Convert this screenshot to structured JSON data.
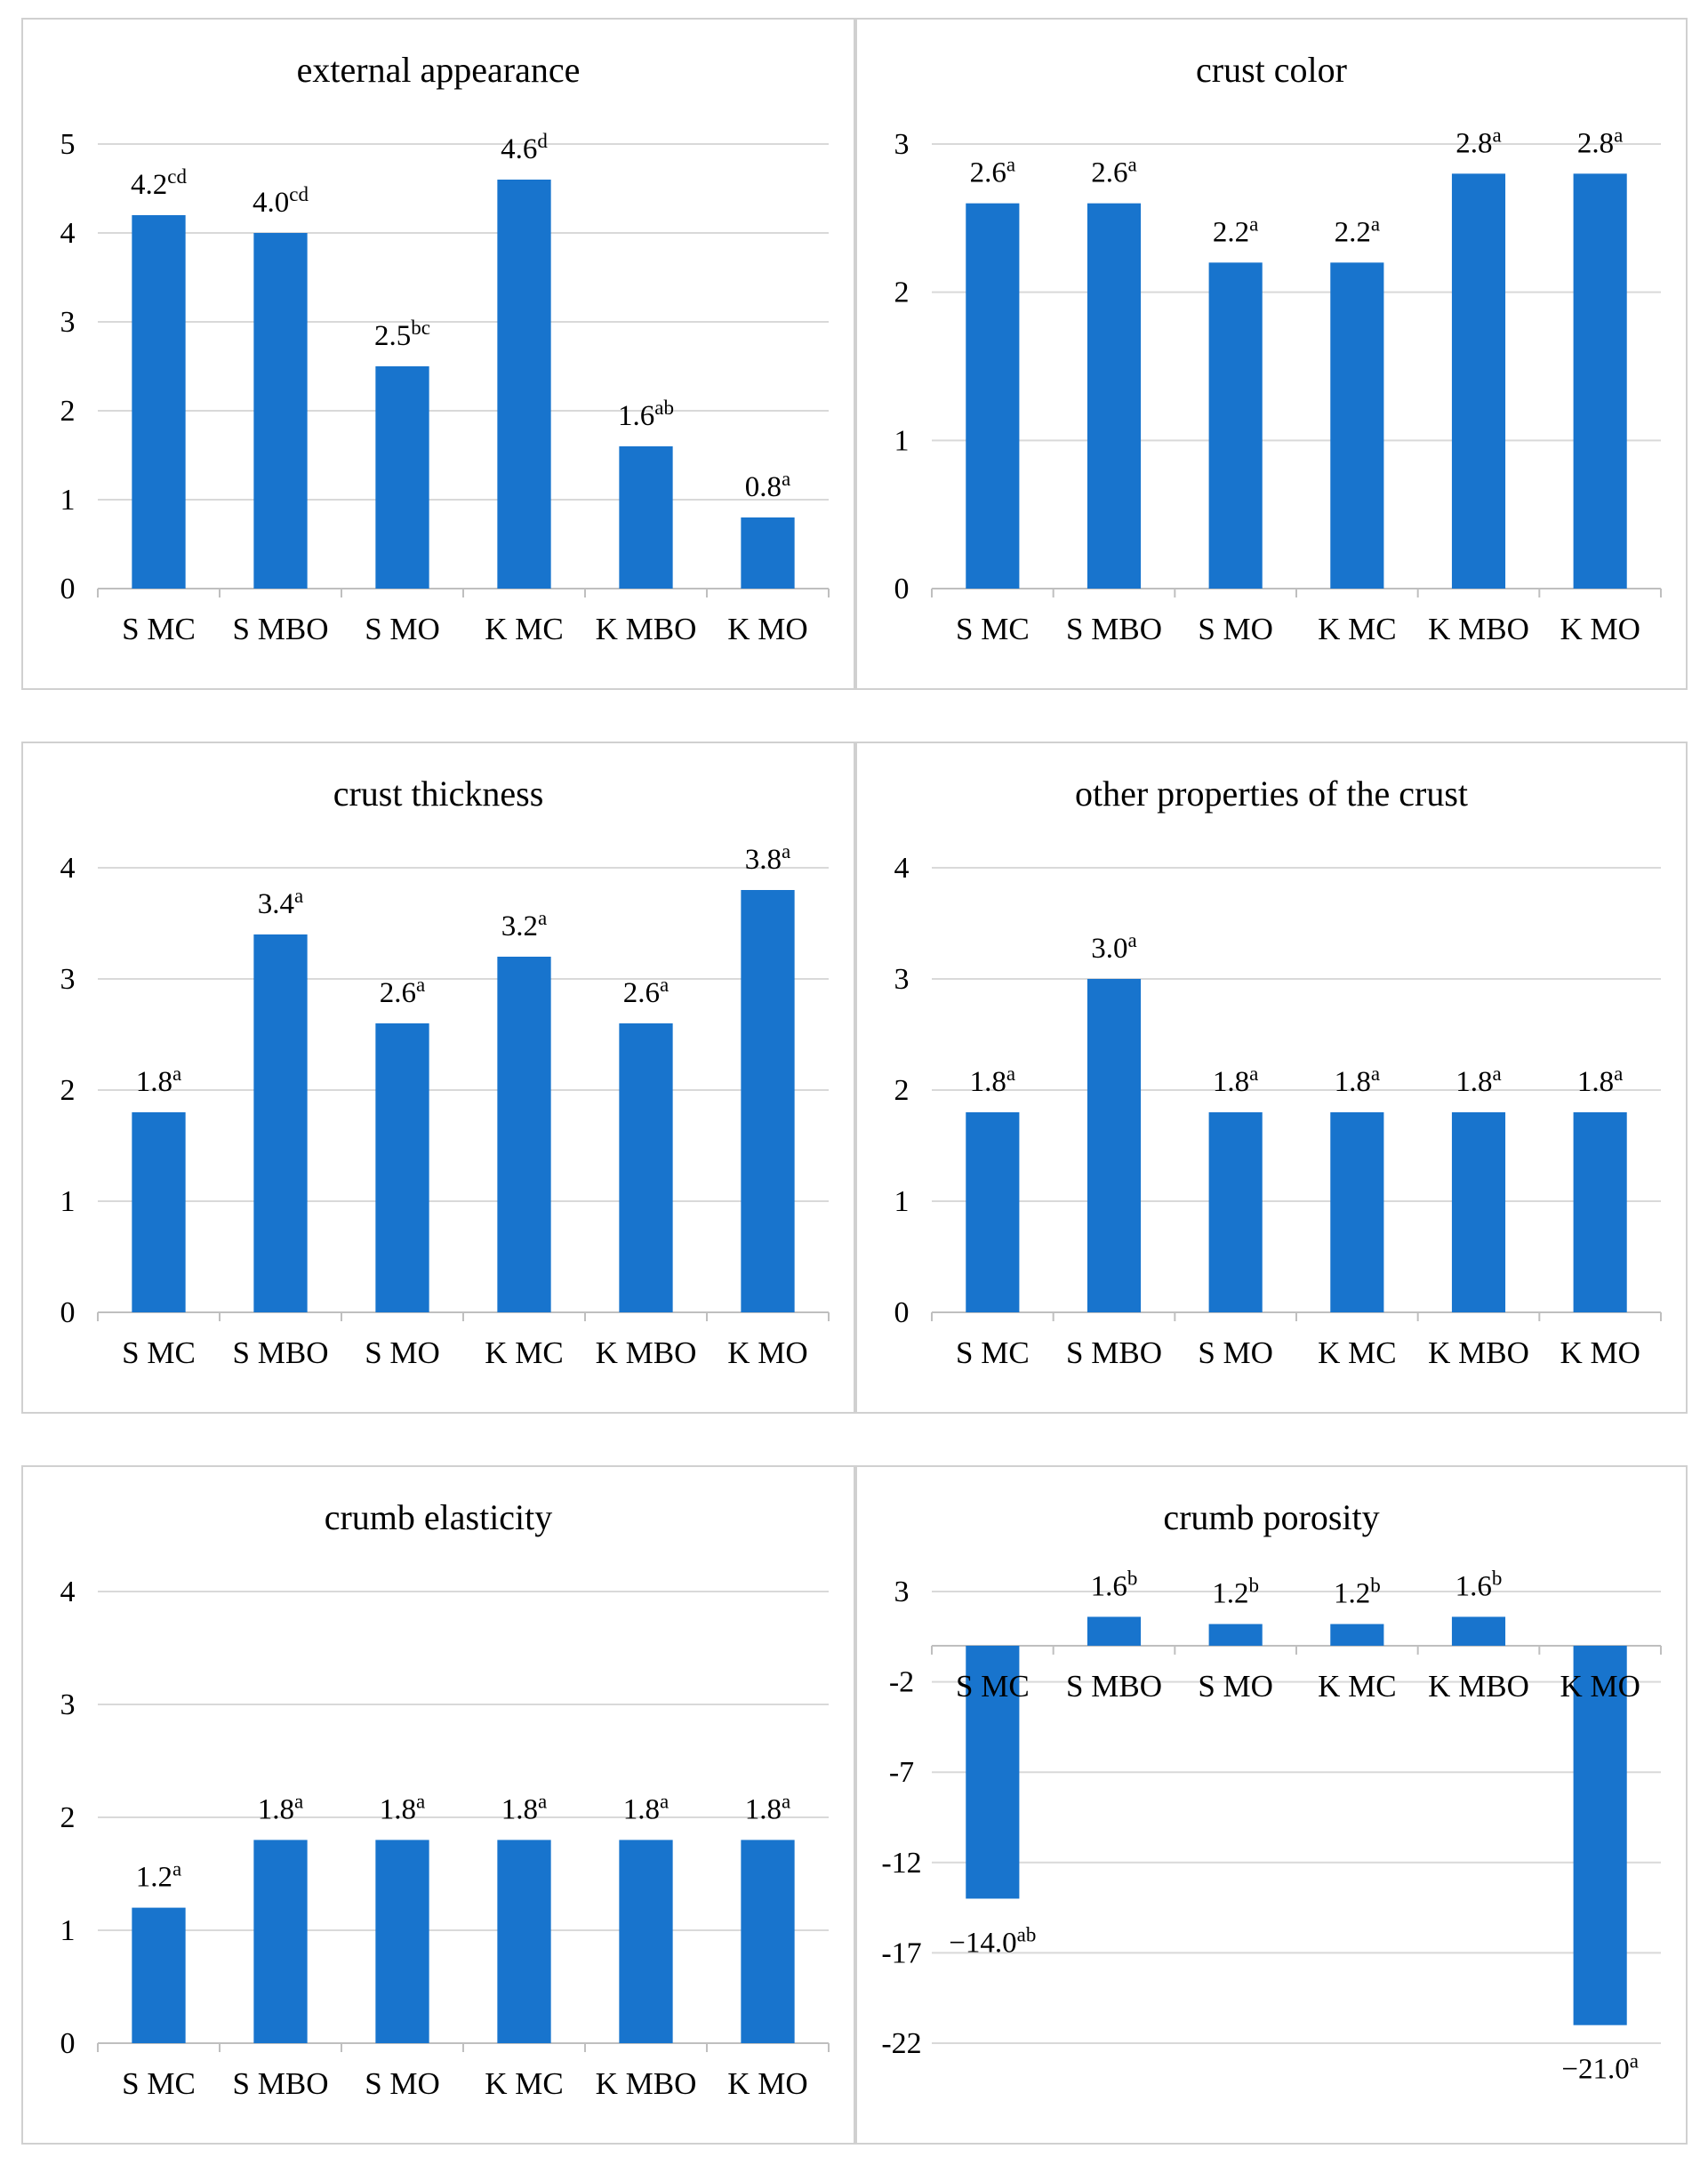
{
  "bar_color": "#1874cd",
  "chart_data": [
    {
      "type": "bar",
      "title": "external appearance",
      "categories": [
        "S MC",
        "S MBO",
        "S MO",
        "K MC",
        "K MBO",
        "K MO"
      ],
      "values": [
        4.2,
        4.0,
        2.5,
        4.6,
        1.6,
        0.8
      ],
      "value_labels": [
        "4.2",
        "4.0",
        "2.5",
        "4.6",
        "1.6",
        "0.8"
      ],
      "superscripts": [
        "cd",
        "cd",
        "bc",
        "d",
        "ab",
        "a"
      ],
      "ylim": [
        0,
        5
      ],
      "yticks": [
        0,
        1,
        2,
        3,
        4,
        5
      ],
      "ytick_labels": [
        "0",
        "1",
        "2",
        "3",
        "4",
        "5"
      ],
      "grid": true
    },
    {
      "type": "bar",
      "title": "crust color",
      "categories": [
        "S MC",
        "S MBO",
        "S MO",
        "K MC",
        "K MBO",
        "K MO"
      ],
      "values": [
        2.6,
        2.6,
        2.2,
        2.2,
        2.8,
        2.8
      ],
      "value_labels": [
        "2.6",
        "2.6",
        "2.2",
        "2.2",
        "2.8",
        "2.8"
      ],
      "superscripts": [
        "a",
        "a",
        "a",
        "a",
        "a",
        "a"
      ],
      "ylim": [
        0,
        3
      ],
      "yticks": [
        0,
        1,
        2,
        3
      ],
      "ytick_labels": [
        "0",
        "1",
        "2",
        "3"
      ],
      "grid": true
    },
    {
      "type": "bar",
      "title": "crust thickness",
      "categories": [
        "S MC",
        "S MBO",
        "S MO",
        "K MC",
        "K MBO",
        "K MO"
      ],
      "values": [
        1.8,
        3.4,
        2.6,
        3.2,
        2.6,
        3.8
      ],
      "value_labels": [
        "1.8",
        "3.4",
        "2.6",
        "3.2",
        "2.6",
        "3.8"
      ],
      "superscripts": [
        "a",
        "a",
        "a",
        "a",
        "a",
        "a"
      ],
      "ylim": [
        0,
        4
      ],
      "yticks": [
        0,
        1,
        2,
        3,
        4
      ],
      "ytick_labels": [
        "0",
        "1",
        "2",
        "3",
        "4"
      ],
      "grid": true
    },
    {
      "type": "bar",
      "title": "other properties of the crust",
      "categories": [
        "S MC",
        "S MBO",
        "S MO",
        "K MC",
        "K MBO",
        "K MO"
      ],
      "values": [
        1.8,
        3.0,
        1.8,
        1.8,
        1.8,
        1.8
      ],
      "value_labels": [
        "1.8",
        "3.0",
        "1.8",
        "1.8",
        "1.8",
        "1.8"
      ],
      "superscripts": [
        "a",
        "a",
        "a",
        "a",
        "a",
        "a"
      ],
      "ylim": [
        0,
        4
      ],
      "yticks": [
        0,
        1,
        2,
        3,
        4
      ],
      "ytick_labels": [
        "0",
        "1",
        "2",
        "3",
        "4"
      ],
      "grid": true
    },
    {
      "type": "bar",
      "title": "crumb elasticity",
      "categories": [
        "S MC",
        "S MBO",
        "S MO",
        "K MC",
        "K MBO",
        "K MO"
      ],
      "values": [
        1.2,
        1.8,
        1.8,
        1.8,
        1.8,
        1.8
      ],
      "value_labels": [
        "1.2",
        "1.8",
        "1.8",
        "1.8",
        "1.8",
        "1.8"
      ],
      "superscripts": [
        "a",
        "a",
        "a",
        "a",
        "a",
        "a"
      ],
      "ylim": [
        0,
        4
      ],
      "yticks": [
        0,
        1,
        2,
        3,
        4
      ],
      "ytick_labels": [
        "0",
        "1",
        "2",
        "3",
        "4"
      ],
      "grid": true
    },
    {
      "type": "bar",
      "title": "crumb porosity",
      "categories": [
        "S MC",
        "S MBO",
        "S MO",
        "K MC",
        "K MBO",
        "K MO"
      ],
      "values": [
        -14.0,
        1.6,
        1.2,
        1.2,
        1.6,
        -21.0
      ],
      "value_labels": [
        "−14.0",
        "1.6",
        "1.2",
        "1.2",
        "1.6",
        "−21.0"
      ],
      "superscripts": [
        "ab",
        "b",
        "b",
        "b",
        "b",
        "a"
      ],
      "ylim": [
        -22,
        3
      ],
      "yticks": [
        -22,
        -17,
        -12,
        -7,
        -2,
        3
      ],
      "ytick_labels": [
        "-22",
        "-17",
        "-12",
        "-7",
        "-2",
        "3"
      ],
      "grid": true
    }
  ]
}
